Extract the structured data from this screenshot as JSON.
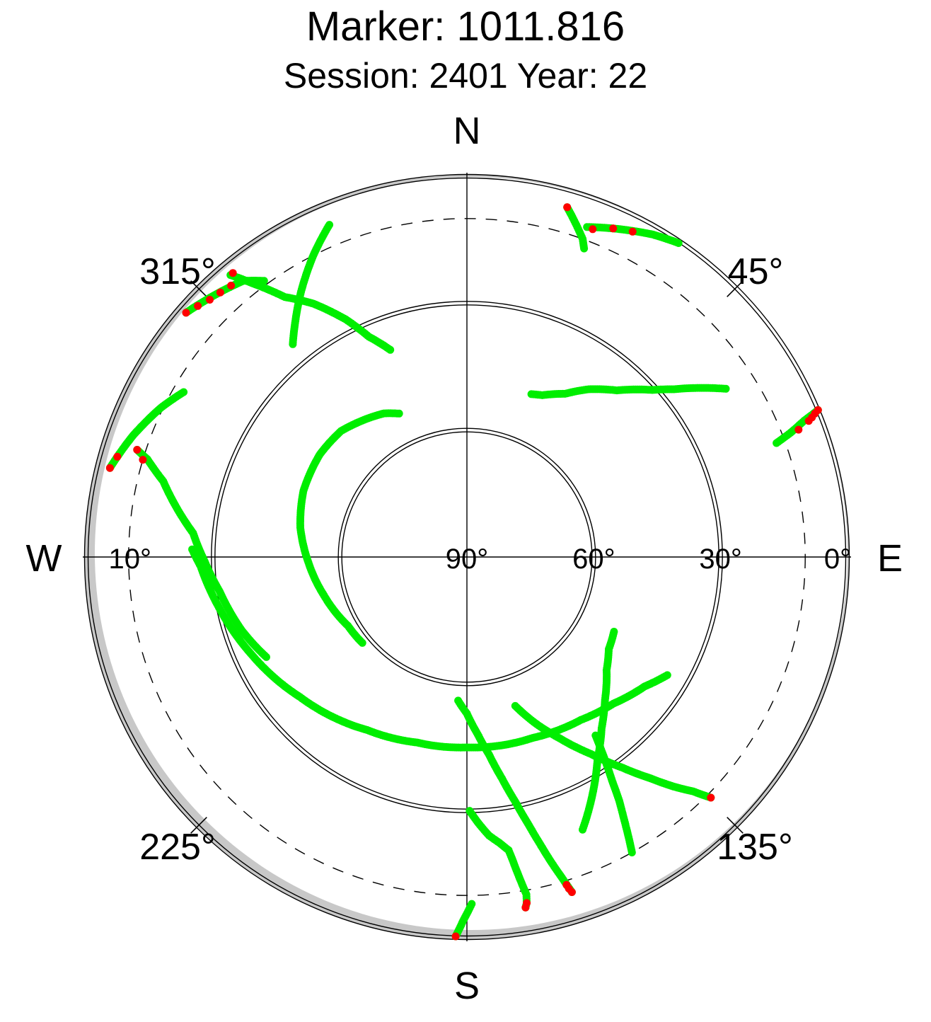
{
  "title": "Marker: 1011.816",
  "subtitle": "Session: 2401 Year: 22",
  "chart_data": {
    "type": "scatter",
    "projection": "polar-skyplot",
    "radial_axis": "elevation",
    "angular_axis": "azimuth",
    "elevation_range": [
      0,
      90
    ],
    "cardinal_labels": {
      "north": "N",
      "east": "E",
      "south": "S",
      "west": "W"
    },
    "azimuth_labels": [
      {
        "text": "45°",
        "az": 45
      },
      {
        "text": "135°",
        "az": 135
      },
      {
        "text": "225°",
        "az": 225
      },
      {
        "text": "315°",
        "az": 315
      }
    ],
    "elevation_labels": [
      {
        "text": "90°",
        "el": 90
      },
      {
        "text": "60°",
        "el": 60
      },
      {
        "text": "30°",
        "el": 30
      },
      {
        "text": "0°",
        "el": 0
      },
      {
        "text": "10°",
        "el": 10
      }
    ],
    "elevation_circles": [
      0,
      30,
      60
    ],
    "cutoff_elevation": 10,
    "colors": {
      "ok": "#00ee00",
      "flagged": "#ff0000",
      "mask": "#c8c8c8"
    },
    "tracks": [
      {
        "points": [
          [
            162.6,
            7
          ],
          [
            163.5,
            11
          ],
          [
            164.5,
            15
          ],
          [
            165.7,
            20
          ],
          [
            167,
            25
          ],
          [
            168.8,
            31
          ],
          [
            171,
            37
          ],
          [
            173.6,
            43
          ],
          [
            176.5,
            48
          ],
          [
            180,
            53
          ],
          [
            183.5,
            56
          ]
        ],
        "flagged": [
          [
            162.6,
            7
          ],
          [
            162.9,
            8
          ],
          [
            163.1,
            9
          ]
        ]
      },
      {
        "points": [
          [
            134.6,
            9
          ],
          [
            136,
            13
          ],
          [
            138,
            17
          ],
          [
            140.3,
            22
          ],
          [
            143.5,
            28
          ],
          [
            147.8,
            35
          ],
          [
            153,
            42
          ],
          [
            158,
            48
          ],
          [
            162,
            53
          ]
        ],
        "flagged": [
          [
            134.6,
            9
          ]
        ]
      },
      {
        "points": [
          [
            150.8,
            10
          ],
          [
            149.9,
            14
          ],
          [
            149,
            18
          ],
          [
            148,
            22
          ],
          [
            147,
            27
          ],
          [
            146,
            31
          ],
          [
            145,
            35
          ],
          [
            144.2,
            38
          ]
        ],
        "flagged": []
      },
      {
        "points": [
          [
            157,
            20
          ],
          [
            152.5,
            26
          ],
          [
            147.2,
            33
          ],
          [
            141.8,
            38.5
          ],
          [
            136,
            43
          ],
          [
            129,
            47.5
          ],
          [
            123,
            50
          ],
          [
            116.9,
            51
          ]
        ],
        "flagged": []
      },
      {
        "points": [
          [
            120.5,
            35
          ],
          [
            126,
            38
          ],
          [
            135,
            41
          ],
          [
            145,
            43
          ],
          [
            160,
            44.5
          ],
          [
            180,
            45
          ],
          [
            195,
            44.6
          ],
          [
            210,
            42.8
          ],
          [
            230,
            38.5
          ],
          [
            246,
            34
          ],
          [
            259,
            30
          ],
          [
            268,
            27
          ],
          [
            271.6,
            25
          ]
        ],
        "flagged": []
      },
      {
        "points": [
          [
            230.6,
            58
          ],
          [
            240,
            57.5
          ],
          [
            255,
            55
          ],
          [
            268,
            52.5
          ],
          [
            280,
            50
          ],
          [
            292,
            48.3
          ],
          [
            305,
            47.6
          ],
          [
            315,
            47.9
          ],
          [
            330,
            50.8
          ],
          [
            334.7,
            52.5
          ]
        ],
        "flagged": []
      },
      {
        "points": [
          [
            243.5,
            37
          ],
          [
            252,
            34
          ],
          [
            262,
            31
          ],
          [
            269,
            28
          ],
          [
            275,
            25
          ],
          [
            280,
            20
          ],
          [
            284,
            16
          ],
          [
            287,
            11
          ],
          [
            288,
            8
          ]
        ],
        "flagged": [
          [
            288,
            8
          ],
          [
            286.7,
            10
          ]
        ]
      },
      {
        "points": [
          [
            179.4,
            30
          ],
          [
            177.5,
            27
          ],
          [
            175.5,
            24
          ],
          [
            173.5,
            22
          ],
          [
            171.9,
            20
          ],
          [
            171.5,
            18
          ],
          [
            171,
            15
          ],
          [
            170.5,
            12
          ],
          [
            170,
            9
          ],
          [
            170.2,
            7
          ],
          [
            170.5,
            6
          ]
        ],
        "flagged": [
          [
            170.2,
            7
          ],
          [
            170.5,
            6
          ]
        ]
      },
      {
        "points": [
          [
            181.7,
            0.3
          ],
          [
            180.6,
            4
          ],
          [
            179.2,
            8
          ]
        ],
        "flagged": [
          [
            181.7,
            0.3
          ]
        ]
      },
      {
        "points": [
          [
            57,
            17
          ],
          [
            54,
            22
          ],
          [
            51,
            27
          ],
          [
            48,
            31
          ],
          [
            42,
            37
          ],
          [
            36,
            41
          ],
          [
            31,
            45
          ],
          [
            25,
            47.8
          ],
          [
            21.6,
            48.6
          ]
        ],
        "flagged": []
      },
      {
        "points": [
          [
            20,
            7
          ],
          [
            25,
            4.5
          ],
          [
            30,
            2
          ],
          [
            34,
            0.5
          ]
        ],
        "flagged": [
          [
            21,
            7
          ],
          [
            24,
            5
          ],
          [
            27,
            3.7
          ]
        ]
      },
      {
        "points": [
          [
            67.3,
            0
          ],
          [
            68,
            4
          ],
          [
            69,
            8
          ],
          [
            69.8,
            12
          ]
        ],
        "flagged": [
          [
            67.3,
            0
          ],
          [
            67.6,
            1
          ],
          [
            68,
            2
          ],
          [
            68.3,
            3
          ],
          [
            69,
            6
          ]
        ]
      },
      {
        "points": [
          [
            320,
            3
          ],
          [
            322,
            8
          ],
          [
            325,
            15
          ],
          [
            328.8,
            20
          ],
          [
            333,
            27
          ],
          [
            336,
            33
          ],
          [
            339.7,
            37.8
          ]
        ],
        "flagged": [
          [
            320.5,
            3
          ]
        ]
      },
      {
        "points": [
          [
            284,
            3
          ],
          [
            290,
            6
          ],
          [
            296,
            9.5
          ],
          [
            300.2,
            12.5
          ]
        ],
        "flagged": [
          [
            284,
            3
          ],
          [
            286,
            4
          ]
        ]
      },
      {
        "points": [
          [
            337.5,
            5
          ],
          [
            333,
            10
          ],
          [
            328,
            16
          ],
          [
            324,
            21
          ],
          [
            320.7,
            25
          ]
        ],
        "flagged": []
      },
      {
        "points": [
          [
            323.7,
            9
          ],
          [
            321,
            6
          ],
          [
            316,
            4
          ],
          [
            311,
            2
          ]
        ],
        "flagged": [
          [
            319,
            5
          ],
          [
            317,
            4.5
          ],
          [
            315,
            4
          ],
          [
            313,
            3
          ],
          [
            311,
            2
          ]
        ]
      },
      {
        "points": [
          [
            16,
            4
          ],
          [
            18,
            7
          ],
          [
            20,
            10
          ],
          [
            20.8,
            12
          ]
        ],
        "flagged": [
          [
            16,
            4
          ]
        ]
      }
    ]
  }
}
